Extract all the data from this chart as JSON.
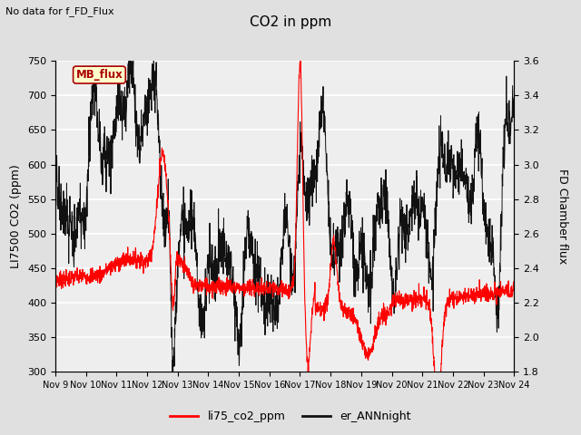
{
  "title": "CO2 in ppm",
  "ylabel_left": "LI7500 CO2 (ppm)",
  "ylabel_right": "FD Chamber flux",
  "top_left_text": "No data for f_FD_Flux",
  "legend_box_text": "MB_flux",
  "ylim_left": [
    300,
    750
  ],
  "ylim_right": [
    1.8,
    3.6
  ],
  "yticks_left": [
    300,
    350,
    400,
    450,
    500,
    550,
    600,
    650,
    700,
    750
  ],
  "yticks_right": [
    1.8,
    2.0,
    2.2,
    2.4,
    2.6,
    2.8,
    3.0,
    3.2,
    3.4,
    3.6
  ],
  "xtick_labels": [
    "Nov 9",
    "Nov 10",
    "Nov 11",
    "Nov 12",
    "Nov 13",
    "Nov 14",
    "Nov 15",
    "Nov 16",
    "Nov 17",
    "Nov 18",
    "Nov 19",
    "Nov 20",
    "Nov 21",
    "Nov 22",
    "Nov 23",
    "Nov 24"
  ],
  "line_red_color": "#ff0000",
  "line_black_color": "#111111",
  "legend_label_red": "li75_co2_ppm",
  "legend_label_black": "er_ANNnight",
  "background_color": "#e0e0e0",
  "plot_bg_color": "#eeeeee",
  "grid_color": "#ffffff",
  "n_days": 15,
  "seed": 7
}
